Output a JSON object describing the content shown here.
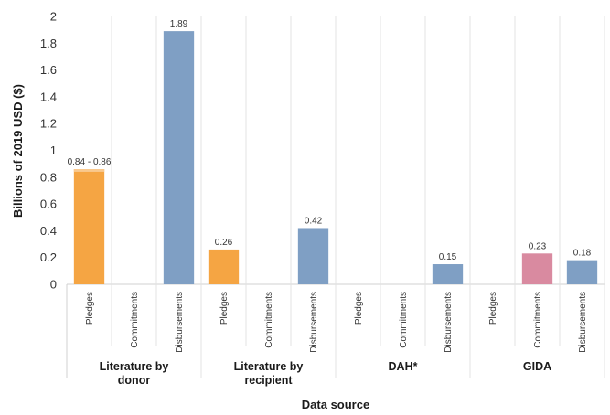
{
  "chart_data": {
    "type": "bar",
    "ylabel": "Billions of 2019 USD ($)",
    "xlabel": "Data source",
    "ylim": [
      0,
      2
    ],
    "yticks": [
      0,
      0.2,
      0.4,
      0.6,
      0.8,
      1,
      1.2,
      1.4,
      1.6,
      1.8,
      2
    ],
    "grid": "vertical-group-separators",
    "groups": [
      {
        "label": "Literature by donor",
        "label_lines": [
          "Literature by",
          "donor"
        ],
        "bars": [
          {
            "category": "Pledges",
            "value": 0.86,
            "range_low": 0.84,
            "data_label": "0.84 - 0.86",
            "color": "#F5A543"
          },
          {
            "category": "Commitments",
            "value": null,
            "data_label": "",
            "color": "#F5A543"
          },
          {
            "category": "Disbursements",
            "value": 1.89,
            "data_label": "1.89",
            "color": "#7F9FC4"
          }
        ]
      },
      {
        "label": "Literature by recipient",
        "label_lines": [
          "Literature by",
          "recipient"
        ],
        "bars": [
          {
            "category": "Pledges",
            "value": 0.26,
            "data_label": "0.26",
            "color": "#F5A543"
          },
          {
            "category": "Commitments",
            "value": null,
            "data_label": "",
            "color": "#F5A543"
          },
          {
            "category": "Disbursements",
            "value": 0.42,
            "data_label": "0.42",
            "color": "#7F9FC4"
          }
        ]
      },
      {
        "label": "DAH*",
        "label_lines": [
          "DAH*"
        ],
        "bars": [
          {
            "category": "Pledges",
            "value": null,
            "data_label": "",
            "color": "#F5A543"
          },
          {
            "category": "Commitments",
            "value": null,
            "data_label": "",
            "color": "#F5A543"
          },
          {
            "category": "Disbursements",
            "value": 0.15,
            "data_label": "0.15",
            "color": "#7F9FC4"
          }
        ]
      },
      {
        "label": "GIDA",
        "label_lines": [
          "GIDA"
        ],
        "bars": [
          {
            "category": "Pledges",
            "value": null,
            "data_label": "",
            "color": "#F5A543"
          },
          {
            "category": "Commitments",
            "value": 0.23,
            "data_label": "0.23",
            "color": "#D98AA0"
          },
          {
            "category": "Disbursements",
            "value": 0.18,
            "data_label": "0.18",
            "color": "#7F9FC4"
          }
        ]
      }
    ]
  }
}
